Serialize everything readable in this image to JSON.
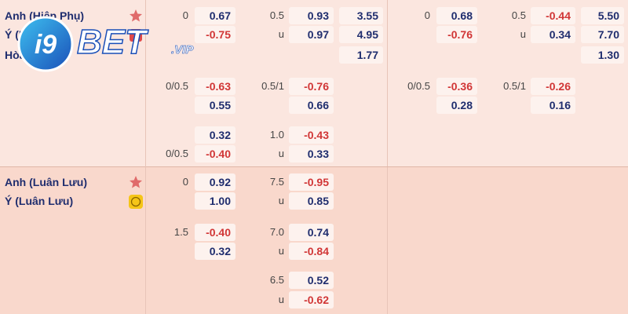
{
  "logo": {
    "prefix": "i9",
    "name": "BET",
    "suffix": ".VIP"
  },
  "sections": [
    {
      "rows": [
        {
          "team": "Anh (Hiệp Phụ)",
          "hdp1_line": "0",
          "hdp1": "0.67",
          "ou1_line": "0.5",
          "ou1": "0.93",
          "x1": "3.55",
          "hdp2_line": "0",
          "hdp2": "0.68",
          "ou2_line": "0.5",
          "ou2": "-0.44",
          "x2": "5.50"
        },
        {
          "team": "Ý (Hiệ",
          "hdp1": "-0.75",
          "ou1_line": "u",
          "ou1": "0.97",
          "x1": "4.95",
          "hdp2": "-0.76",
          "ou2_line": "u",
          "ou2": "0.34",
          "x2": "7.70"
        },
        {
          "team": "Hòa",
          "x1": "1.77",
          "x2": "1.30"
        },
        {
          "hdp1_line": "0/0.5",
          "hdp1": "-0.63",
          "ou1_line": "0.5/1",
          "ou1": "-0.76",
          "hdp2_line": "0/0.5",
          "hdp2": "-0.36",
          "ou2_line": "0.5/1",
          "ou2": "-0.26"
        },
        {
          "hdp1": "0.55",
          "ou1": "0.66",
          "hdp2": "0.28",
          "ou2": "0.16"
        },
        {
          "hdp1": "0.32",
          "ou1_line": "1.0",
          "ou1": "-0.43"
        },
        {
          "hdp1_line": "0/0.5",
          "hdp1": "-0.40",
          "ou1_line": "u",
          "ou1": "0.33"
        }
      ]
    },
    {
      "rows": [
        {
          "team": "Anh (Luân Lưu)",
          "hdp1_line": "0",
          "hdp1": "0.92",
          "ou1_line": "7.5",
          "ou1": "-0.95"
        },
        {
          "team": "Ý (Luân Lưu)",
          "hdp1": "1.00",
          "ou1_line": "u",
          "ou1": "0.85"
        },
        {
          "hdp1_line": "1.5",
          "hdp1": "-0.40",
          "ou1_line": "7.0",
          "ou1": "0.74"
        },
        {
          "hdp1": "0.32",
          "ou1_line": "u",
          "ou1": "-0.84"
        },
        {
          "ou1_line": "6.5",
          "ou1": "0.52"
        },
        {
          "ou1_line": "u",
          "ou1": "-0.62"
        }
      ]
    }
  ]
}
